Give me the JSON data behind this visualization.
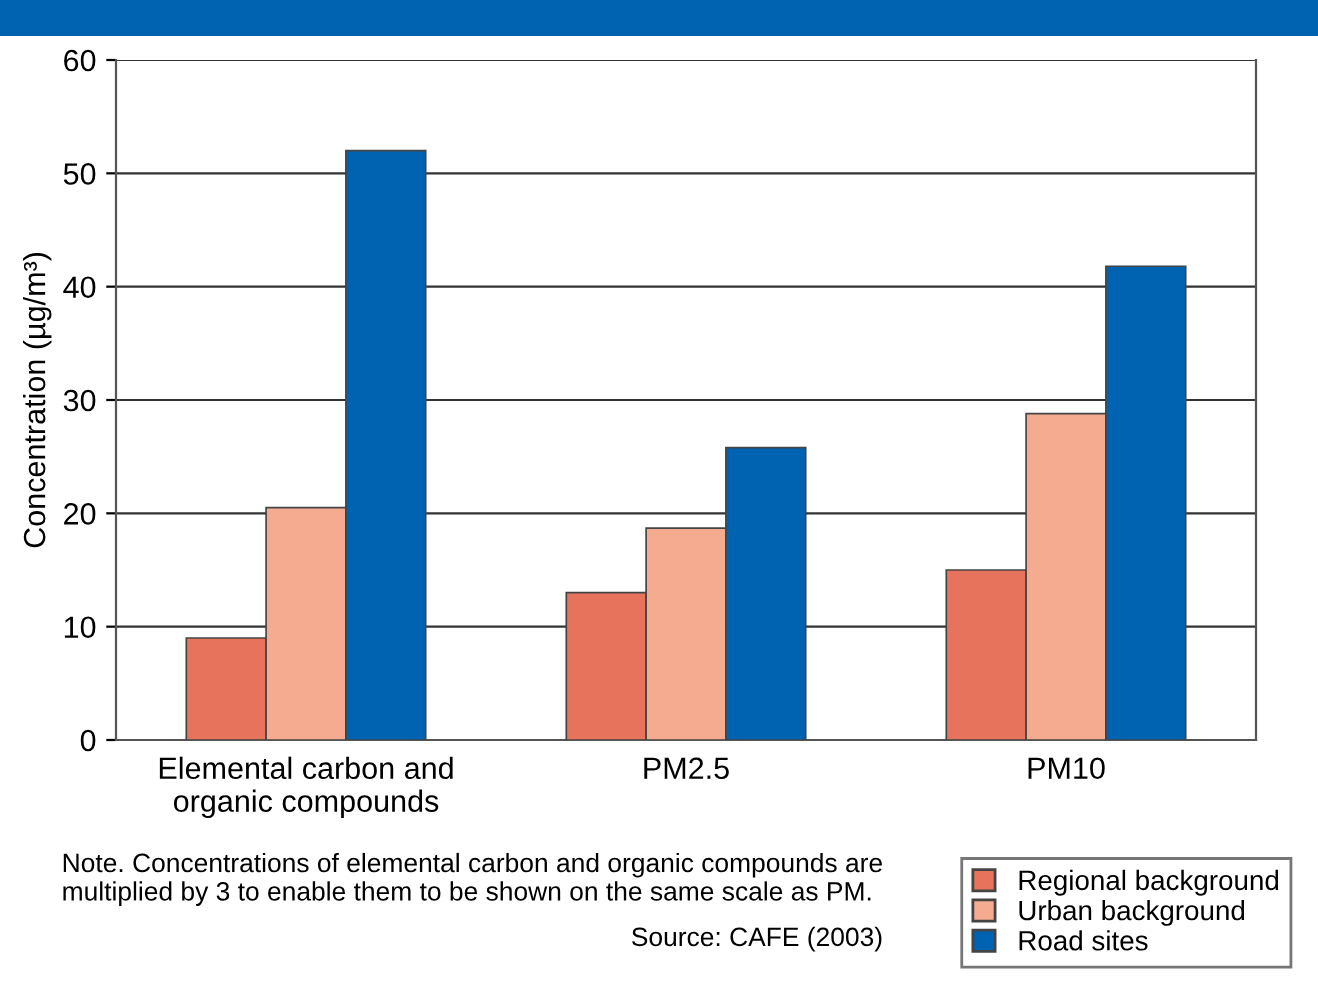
{
  "chart_data": {
    "type": "bar",
    "ylabel": "Concentration (µg/m³)",
    "categories": [
      "Elemental carbon and\norganic compounds",
      "PM2.5",
      "PM10"
    ],
    "series": [
      {
        "name": "Regional background",
        "color": "#e8735c",
        "values": [
          9,
          13,
          15
        ]
      },
      {
        "name": "Urban background",
        "color": "#f5ab90",
        "values": [
          20.5,
          18.7,
          28.8
        ]
      },
      {
        "name": "Road sites",
        "color": "#0063b1",
        "values": [
          52,
          25.8,
          41.8
        ]
      }
    ],
    "ylim": [
      0,
      60
    ],
    "yticks": [
      0,
      10,
      20,
      30,
      40,
      50,
      60
    ],
    "grid": "y",
    "legend": "bottom right",
    "annotations": [
      "Note. Concentrations of elemental carbon and organic compounds are multiplied by 3 to enable them to be shown on the same scale as PM.",
      "Source: CAFE (2003)"
    ]
  }
}
